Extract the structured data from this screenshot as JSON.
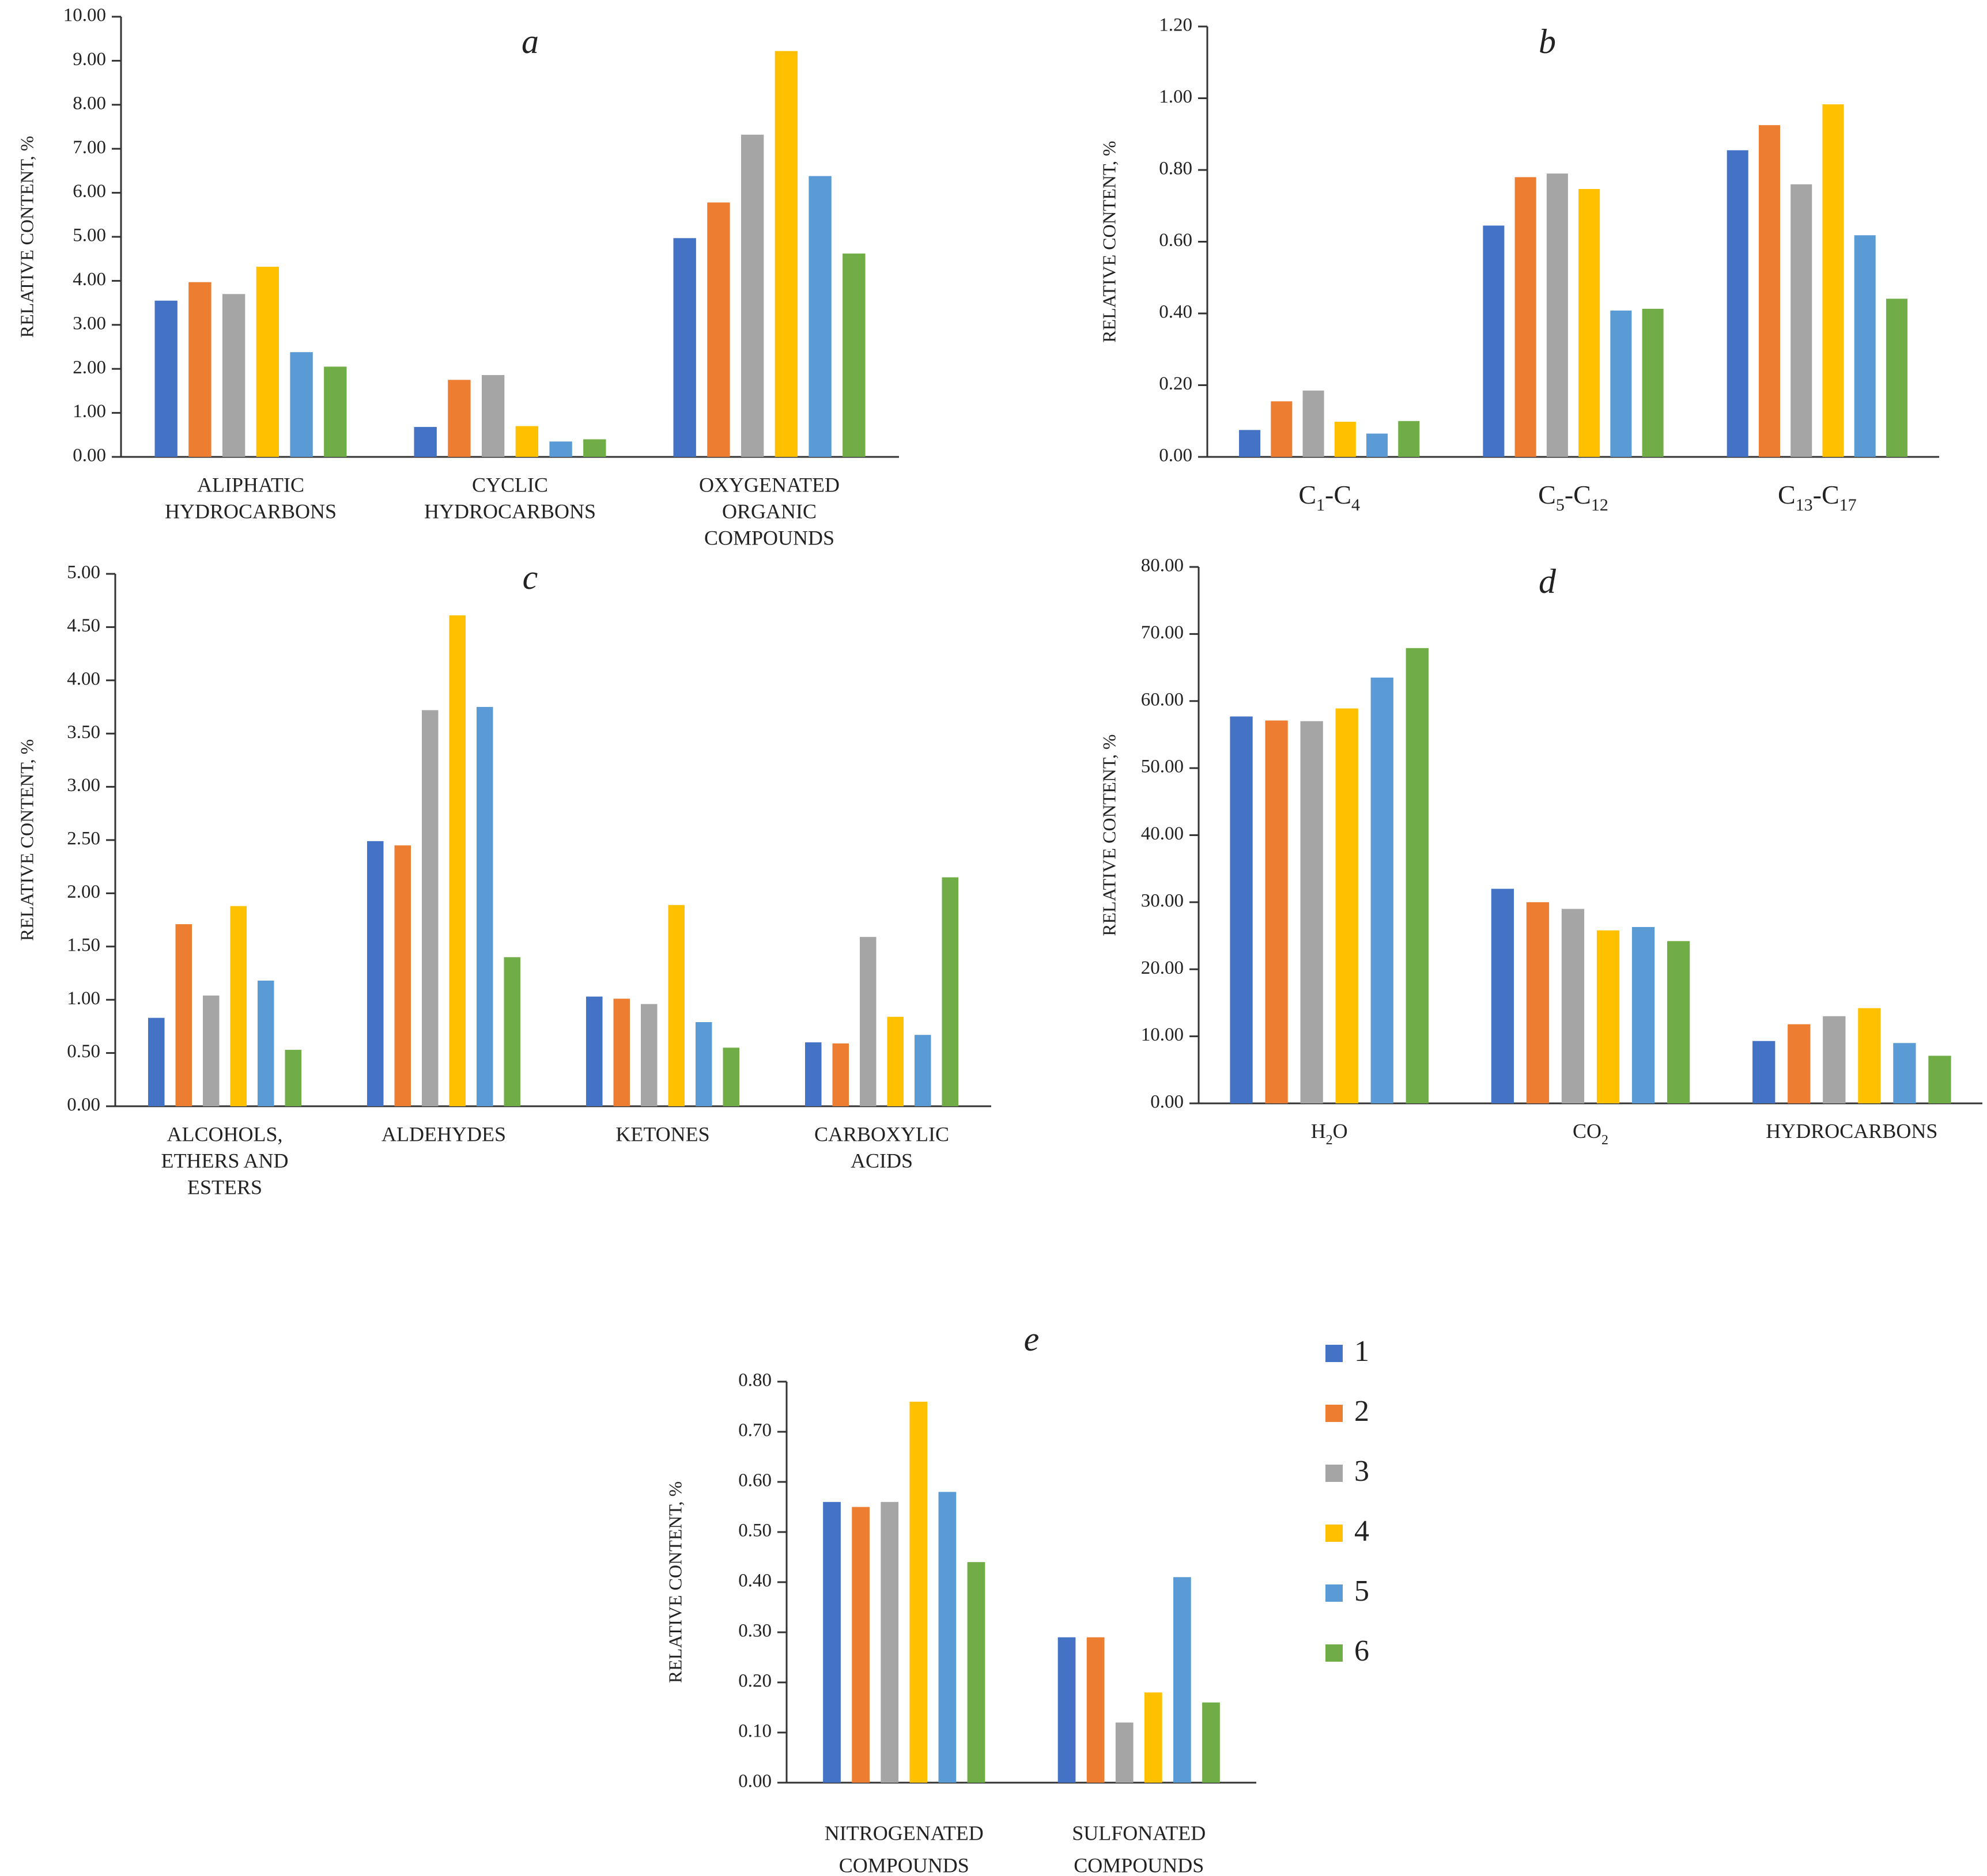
{
  "series_colors": [
    "#4472c4",
    "#ed7d31",
    "#a5a5a5",
    "#ffc000",
    "#5b9bd5",
    "#70ad47"
  ],
  "legend": {
    "entries": [
      "1",
      "2",
      "3",
      "4",
      "5",
      "6"
    ]
  },
  "chart_data": [
    {
      "id": "a",
      "type": "bar",
      "title": "a",
      "ylabel": "RELATIVE CONTENT, %",
      "xlabel": "",
      "ylim": [
        0,
        10
      ],
      "yticks": [
        0,
        1,
        2,
        3,
        4,
        5,
        6,
        7,
        8,
        9,
        10
      ],
      "ytick_labels": [
        "0.00",
        "1.00",
        "2.00",
        "3.00",
        "4.00",
        "5.00",
        "6.00",
        "7.00",
        "8.00",
        "9.00",
        "10.00"
      ],
      "categories": [
        [
          "ALIPHATIC",
          "HYDROCARBONS"
        ],
        [
          "CYCLIC",
          "HYDROCARBONS"
        ],
        [
          "OXYGENATED",
          "ORGANIC",
          "COMPOUNDS"
        ]
      ],
      "series": [
        {
          "name": "1",
          "values": [
            3.55,
            0.68,
            4.97
          ]
        },
        {
          "name": "2",
          "values": [
            3.97,
            1.75,
            5.78
          ]
        },
        {
          "name": "3",
          "values": [
            3.7,
            1.86,
            7.32
          ]
        },
        {
          "name": "4",
          "values": [
            4.32,
            0.7,
            9.22
          ]
        },
        {
          "name": "5",
          "values": [
            2.38,
            0.35,
            6.38
          ]
        },
        {
          "name": "6",
          "values": [
            2.05,
            0.4,
            4.62
          ]
        }
      ]
    },
    {
      "id": "b",
      "type": "bar",
      "title": "b",
      "ylabel": "RELATIVE CONTENT, %",
      "xlabel": "",
      "ylim": [
        0,
        1.2
      ],
      "yticks": [
        0,
        0.2,
        0.4,
        0.6,
        0.8,
        1.0,
        1.2
      ],
      "ytick_labels": [
        "0.00",
        "0.20",
        "0.40",
        "0.60",
        "0.80",
        "1.00",
        "1.20"
      ],
      "categories": [
        [
          [
            "C",
            ""
          ],
          [
            "1",
            "sub"
          ],
          [
            "-C",
            ""
          ],
          [
            "4",
            "sub"
          ]
        ],
        [
          [
            "C",
            ""
          ],
          [
            "5",
            "sub"
          ],
          [
            "-C",
            ""
          ],
          [
            "12",
            "sub"
          ]
        ],
        [
          [
            "C",
            ""
          ],
          [
            "13",
            "sub"
          ],
          [
            "-C",
            ""
          ],
          [
            "17",
            "sub"
          ]
        ]
      ],
      "series": [
        {
          "name": "1",
          "values": [
            0.075,
            0.645,
            0.855
          ]
        },
        {
          "name": "2",
          "values": [
            0.155,
            0.78,
            0.925
          ]
        },
        {
          "name": "3",
          "values": [
            0.185,
            0.79,
            0.76
          ]
        },
        {
          "name": "4",
          "values": [
            0.098,
            0.747,
            0.983
          ]
        },
        {
          "name": "5",
          "values": [
            0.065,
            0.408,
            0.618
          ]
        },
        {
          "name": "6",
          "values": [
            0.1,
            0.413,
            0.441
          ]
        }
      ]
    },
    {
      "id": "c",
      "type": "bar",
      "title": "c",
      "ylabel": "RELATIVE CONTENT, %",
      "xlabel": "",
      "ylim": [
        0,
        5
      ],
      "yticks": [
        0,
        0.5,
        1,
        1.5,
        2,
        2.5,
        3,
        3.5,
        4,
        4.5,
        5
      ],
      "ytick_labels": [
        "0.00",
        "0.50",
        "1.00",
        "1.50",
        "2.00",
        "2.50",
        "3.00",
        "3.50",
        "4.00",
        "4.50",
        "5.00"
      ],
      "categories": [
        [
          "ALCOHOLS,",
          "ETHERS AND",
          "ESTERS"
        ],
        [
          "ALDEHYDES"
        ],
        [
          "KETONES"
        ],
        [
          "CARBOXYLIC",
          "ACIDS"
        ]
      ],
      "series": [
        {
          "name": "1",
          "values": [
            0.83,
            2.49,
            1.03,
            0.6
          ]
        },
        {
          "name": "2",
          "values": [
            1.71,
            2.45,
            1.01,
            0.59
          ]
        },
        {
          "name": "3",
          "values": [
            1.04,
            3.72,
            0.96,
            1.59
          ]
        },
        {
          "name": "4",
          "values": [
            1.88,
            4.61,
            1.89,
            0.84
          ]
        },
        {
          "name": "5",
          "values": [
            1.18,
            3.75,
            0.79,
            0.67
          ]
        },
        {
          "name": "6",
          "values": [
            0.53,
            1.4,
            0.55,
            2.15
          ]
        }
      ]
    },
    {
      "id": "d",
      "type": "bar",
      "title": "d",
      "ylabel": "RELATIVE CONTENT, %",
      "xlabel": "",
      "ylim": [
        0,
        80
      ],
      "yticks": [
        0,
        10,
        20,
        30,
        40,
        50,
        60,
        70,
        80
      ],
      "ytick_labels": [
        "0.00",
        "10.00",
        "20.00",
        "30.00",
        "40.00",
        "50.00",
        "60.00",
        "70.00",
        "80.00"
      ],
      "categories": [
        [
          [
            "H",
            ""
          ],
          [
            "2",
            "sub"
          ],
          [
            "O",
            ""
          ]
        ],
        [
          [
            "CO",
            ""
          ],
          [
            "2",
            "sub"
          ]
        ],
        [
          [
            "HYDROCARBONS",
            ""
          ]
        ]
      ],
      "series": [
        {
          "name": "1",
          "values": [
            57.7,
            32.0,
            9.3
          ]
        },
        {
          "name": "2",
          "values": [
            57.1,
            30.0,
            11.8
          ]
        },
        {
          "name": "3",
          "values": [
            57.0,
            29.0,
            13.0
          ]
        },
        {
          "name": "4",
          "values": [
            58.9,
            25.8,
            14.2
          ]
        },
        {
          "name": "5",
          "values": [
            63.5,
            26.3,
            9.0
          ]
        },
        {
          "name": "6",
          "values": [
            67.9,
            24.2,
            7.1
          ]
        }
      ]
    },
    {
      "id": "e",
      "type": "bar",
      "title": "e",
      "ylabel": "RELATIVE CONTENT, %",
      "xlabel": "",
      "ylim": [
        0,
        0.8
      ],
      "yticks": [
        0,
        0.1,
        0.2,
        0.3,
        0.4,
        0.5,
        0.6,
        0.7,
        0.8
      ],
      "ytick_labels": [
        "0.00",
        "0.10",
        "0.20",
        "0.30",
        "0.40",
        "0.50",
        "0.60",
        "0.70",
        "0.80"
      ],
      "categories": [
        [
          "NITROGENATED",
          "COMPOUNDS"
        ],
        [
          "SULFONATED",
          "COMPOUNDS"
        ]
      ],
      "series": [
        {
          "name": "1",
          "values": [
            0.56,
            0.29
          ]
        },
        {
          "name": "2",
          "values": [
            0.55,
            0.29
          ]
        },
        {
          "name": "3",
          "values": [
            0.56,
            0.12
          ]
        },
        {
          "name": "4",
          "values": [
            0.76,
            0.18
          ]
        },
        {
          "name": "5",
          "values": [
            0.58,
            0.41
          ]
        },
        {
          "name": "6",
          "values": [
            0.44,
            0.16
          ]
        }
      ]
    }
  ]
}
